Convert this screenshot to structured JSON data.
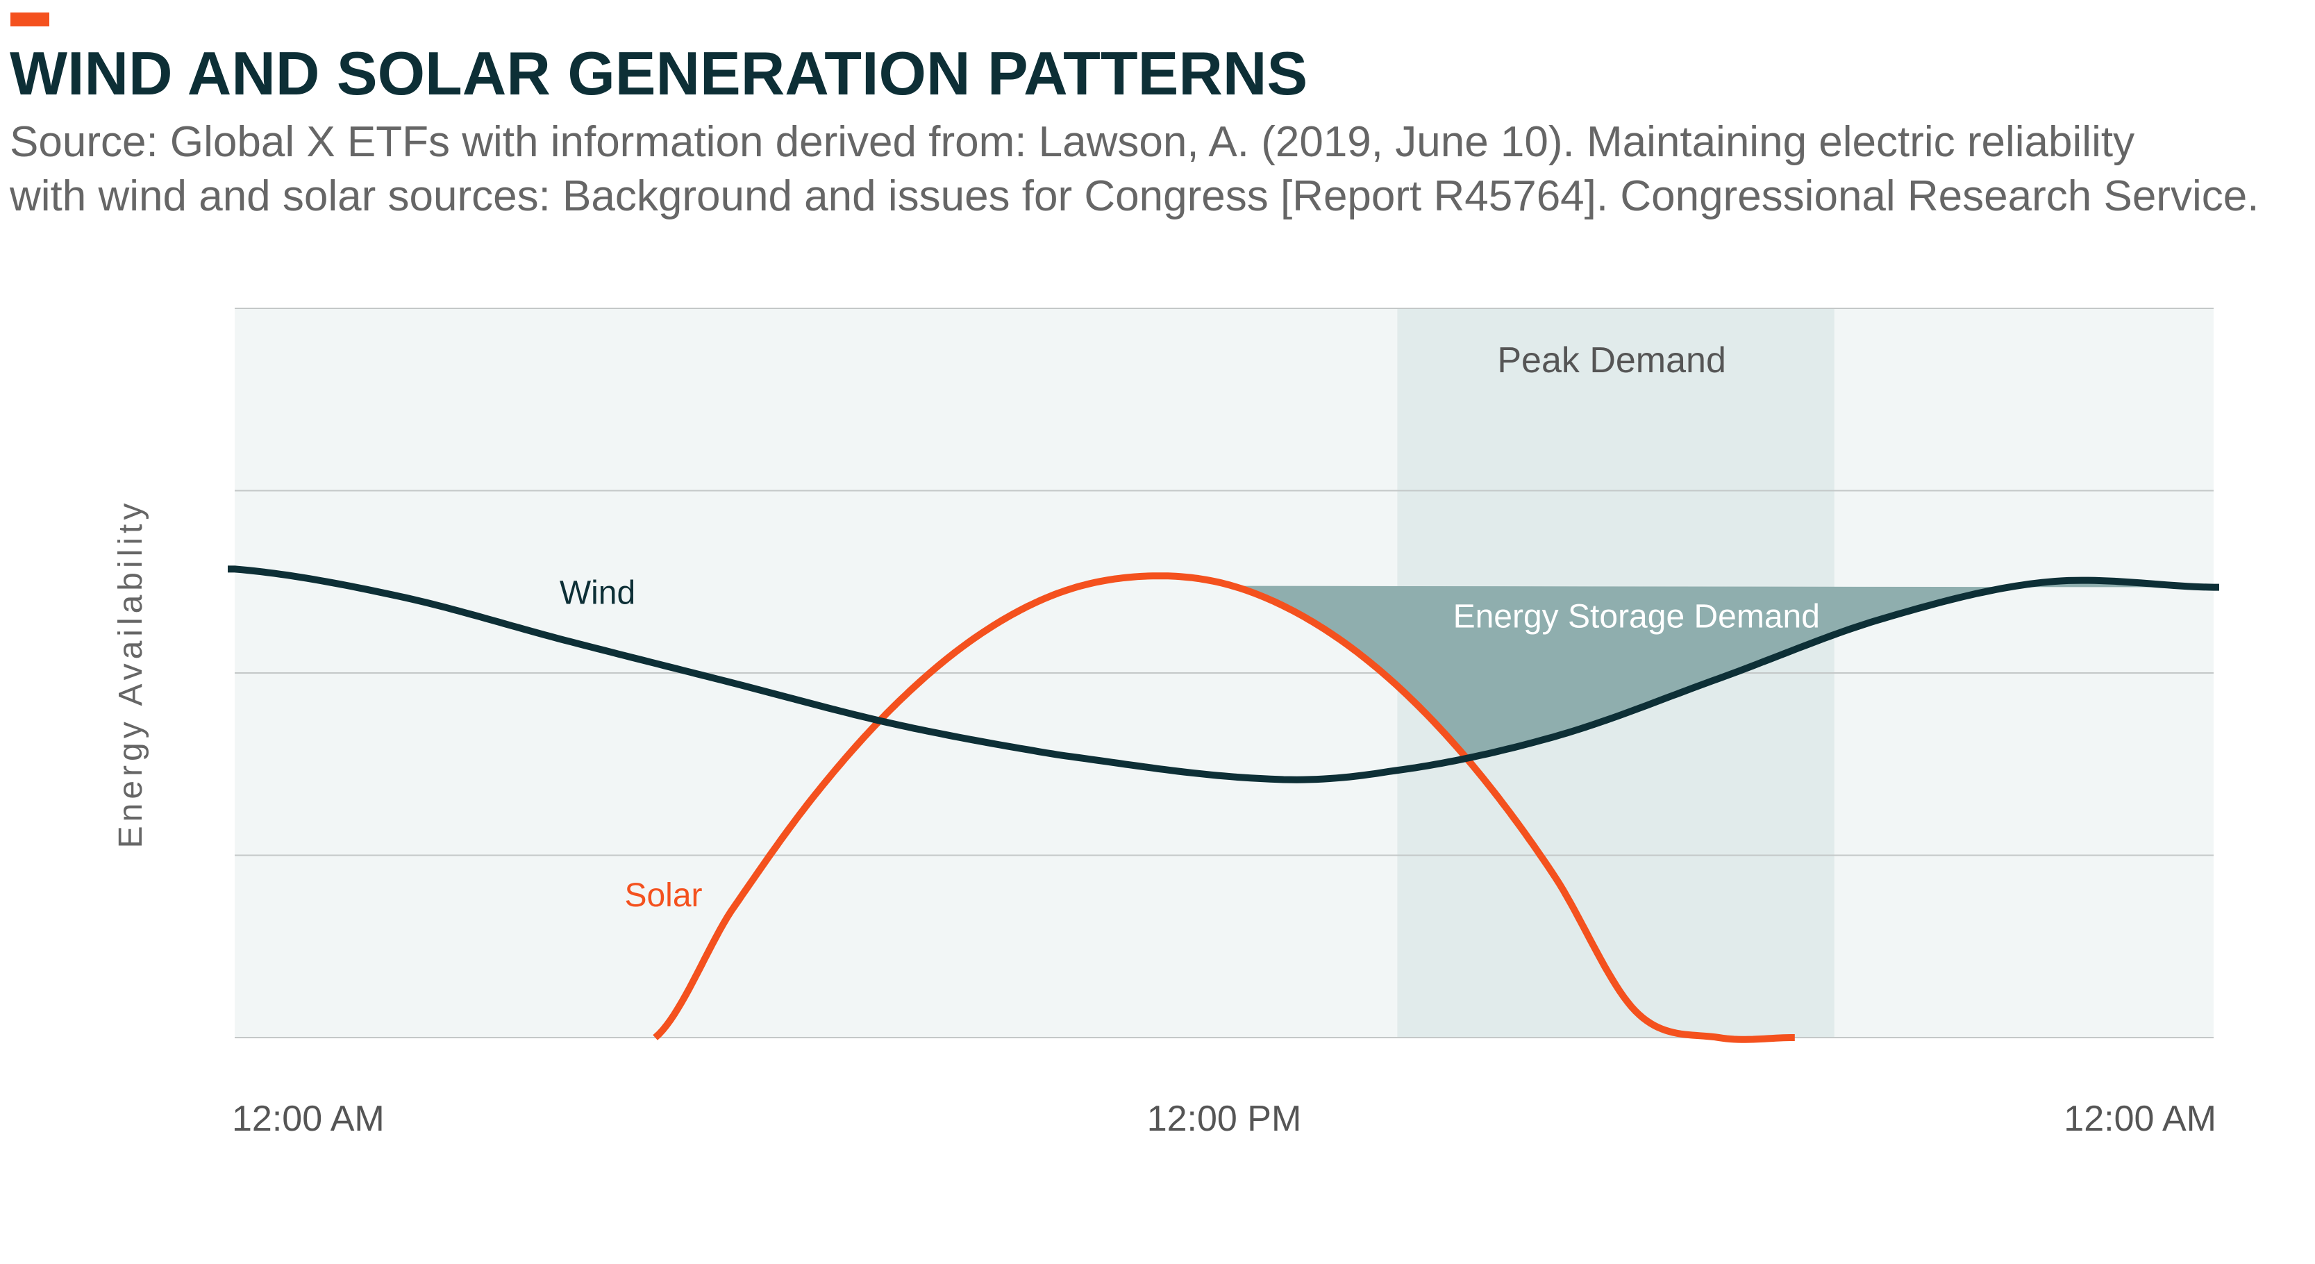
{
  "header": {
    "title": "WIND AND SOLAR GENERATION PATTERNS",
    "source_line1": "Source:  Global X ETFs with information derived from: Lawson, A. (2019, June 10). Maintaining electric reliability",
    "source_line2": "with wind and solar sources: Background and issues for Congress [Report R45764]. Congressional Research Service."
  },
  "colors": {
    "accent": "#f4511e",
    "title": "#0d2f36",
    "wind": "#0d2f36",
    "solar": "#f4511e",
    "storage_fill": "#8faeae",
    "peak_band": "#e1ebeb",
    "plot_bg": "#f2f6f6",
    "grid": "#c4c8c8",
    "text_muted": "#666666"
  },
  "chart_data": {
    "type": "line",
    "title": "WIND AND SOLAR GENERATION PATTERNS",
    "xlabel": "",
    "ylabel": "Energy Availability",
    "x_unit": "hours since 12:00 AM",
    "xlim": [
      0,
      24
    ],
    "ylim": [
      0,
      4
    ],
    "x_tick_labels": [
      {
        "x": 0,
        "label": "12:00 AM"
      },
      {
        "x": 12,
        "label": "12:00 PM"
      },
      {
        "x": 24,
        "label": "12:00 AM"
      }
    ],
    "y_gridlines": [
      0,
      1,
      2,
      3,
      4
    ],
    "grid": true,
    "legend": "none",
    "series": [
      {
        "name": "Wind",
        "x": [
          0,
          2,
          4,
          6,
          8,
          10,
          12.5,
          14,
          16,
          18,
          20,
          22,
          24
        ],
        "y": [
          2.57,
          2.42,
          2.18,
          1.95,
          1.72,
          1.55,
          1.42,
          1.46,
          1.65,
          1.97,
          2.3,
          2.5,
          2.47
        ]
      },
      {
        "name": "Solar",
        "x": [
          5.1,
          6,
          7,
          8,
          9,
          10,
          11,
          12,
          13,
          14,
          15,
          16,
          17,
          18,
          18.9
        ],
        "y": [
          0.0,
          0.68,
          1.31,
          1.82,
          2.2,
          2.44,
          2.53,
          2.49,
          2.3,
          1.97,
          1.5,
          0.89,
          0.14,
          0.0,
          0.0
        ]
      }
    ],
    "shaded_regions": [
      {
        "label": "Peak Demand",
        "x_start": 14.1,
        "x_end": 19.4
      }
    ],
    "areas": [
      {
        "label": "Energy Storage Demand",
        "x_start": 12.1,
        "x_end": 24,
        "between": [
          "Wind",
          "Solar"
        ]
      }
    ],
    "annotations": [
      {
        "text": "Wind",
        "x": 4.4,
        "y": 2.38
      },
      {
        "text": "Solar",
        "x": 5.2,
        "y": 0.72
      },
      {
        "text": "Peak Demand",
        "x": 16.7,
        "y": 3.65
      },
      {
        "text": "Energy Storage Demand",
        "x": 17.0,
        "y": 2.25
      }
    ]
  }
}
